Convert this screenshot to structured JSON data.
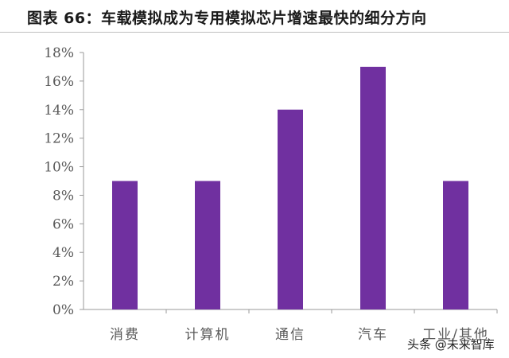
{
  "title": "图表 66：车载模拟成为专用模拟芯片增速最快的细分方向",
  "watermark": "头条 @未来智库",
  "chart_data": {
    "type": "bar",
    "categories": [
      "消费",
      "计算机",
      "通信",
      "汽车",
      "工业/其他"
    ],
    "values": [
      9,
      9,
      14,
      17,
      9
    ],
    "value_unit": "%",
    "yticks": [
      "0%",
      "2%",
      "4%",
      "6%",
      "8%",
      "10%",
      "12%",
      "14%",
      "16%",
      "18%"
    ],
    "ylim": [
      0,
      18
    ],
    "bar_color": "#7030a0",
    "grid": false,
    "legend": "none"
  }
}
